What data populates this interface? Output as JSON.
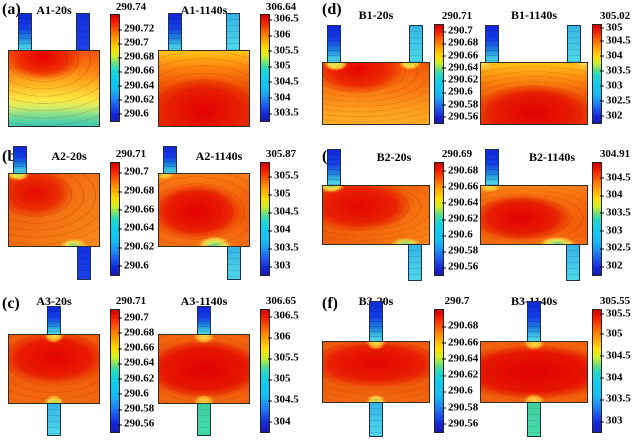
{
  "figure": {
    "panels": [
      {
        "label": "(a)",
        "plots": [
          {
            "title": "A1-20s",
            "colorbar_max": "290.74",
            "ticks": [
              "290.72",
              "290.7",
              "290.68",
              "290.66",
              "290.64",
              "290.62",
              "290.6"
            ]
          },
          {
            "title": "A1-1140s",
            "colorbar_max": "306.64",
            "ticks": [
              "306.5",
              "306",
              "305.5",
              "305",
              "304.5",
              "304",
              "303.5"
            ]
          }
        ]
      },
      {
        "label": "(d)",
        "plots": [
          {
            "title": "B1-20s",
            "colorbar_max": "290.71",
            "ticks": [
              "290.7",
              "290.68",
              "290.66",
              "290.64",
              "290.62",
              "290.6",
              "290.58",
              "290.56"
            ]
          },
          {
            "title": "B1-1140s",
            "colorbar_max": "305.02",
            "ticks": [
              "305",
              "304.5",
              "304",
              "303.5",
              "303",
              "302.5",
              "302"
            ]
          }
        ]
      },
      {
        "label": "(b)",
        "plots": [
          {
            "title": "A2-20s",
            "colorbar_max": "290.71",
            "ticks": [
              "290.7",
              "290.68",
              "290.66",
              "290.64",
              "290.62",
              "290.6"
            ]
          },
          {
            "title": "A2-1140s",
            "colorbar_max": "305.87",
            "ticks": [
              "305.5",
              "305",
              "304.5",
              "304",
              "303.5",
              "303"
            ]
          }
        ]
      },
      {
        "label": "(e)",
        "plots": [
          {
            "title": "B2-20s",
            "colorbar_max": "290.69",
            "ticks": [
              "290.68",
              "290.66",
              "290.64",
              "290.62",
              "290.6",
              "290.58",
              "290.56"
            ]
          },
          {
            "title": "B2-1140s",
            "colorbar_max": "304.91",
            "ticks": [
              "304.5",
              "304",
              "303.5",
              "303",
              "302.5",
              "302"
            ]
          }
        ]
      },
      {
        "label": "(c)",
        "plots": [
          {
            "title": "A3-20s",
            "colorbar_max": "290.71",
            "ticks": [
              "290.7",
              "290.68",
              "290.66",
              "290.64",
              "290.62",
              "290.6",
              "290.58",
              "290.56"
            ]
          },
          {
            "title": "A3-1140s",
            "colorbar_max": "306.65",
            "ticks": [
              "306.5",
              "306",
              "305.5",
              "305",
              "304.5",
              "304"
            ]
          }
        ]
      },
      {
        "label": "(f)",
        "plots": [
          {
            "title": "B3-20s",
            "colorbar_max": "290.7",
            "ticks": [
              "290.68",
              "290.66",
              "290.64",
              "290.62",
              "290.6",
              "290.58",
              "290.56"
            ]
          },
          {
            "title": "B3-1140s",
            "colorbar_max": "305.55",
            "ticks": [
              "305.5",
              "305",
              "304.5",
              "304",
              "303.5",
              "303"
            ]
          }
        ]
      }
    ]
  },
  "chart_data": [
    {
      "type": "heatmap",
      "panel": "(a)",
      "title": "A1-20s",
      "colormap": "jet",
      "colorbar_max": 290.74,
      "colorbar_ticks": [
        290.72,
        290.7,
        290.68,
        290.66,
        290.64,
        290.62,
        290.6
      ],
      "tab_layout": "two tabs on top",
      "hot_region": "upper center of cell",
      "cold_region": "bottom edge and tabs"
    },
    {
      "type": "heatmap",
      "panel": "(a)",
      "title": "A1-1140s",
      "colormap": "jet",
      "colorbar_max": 306.64,
      "colorbar_ticks": [
        306.5,
        306,
        305.5,
        305,
        304.5,
        304,
        303.5
      ],
      "tab_layout": "two tabs on top",
      "hot_region": "lower two-thirds of cell",
      "cold_region": "tabs"
    },
    {
      "type": "heatmap",
      "panel": "(b)",
      "title": "A2-20s",
      "colormap": "jet",
      "colorbar_max": 290.71,
      "colorbar_ticks": [
        290.7,
        290.68,
        290.66,
        290.64,
        290.62,
        290.6
      ],
      "tab_layout": "tab top-left, tab bottom-right",
      "hot_region": "upper-left of cell",
      "cold_region": "tabs"
    },
    {
      "type": "heatmap",
      "panel": "(b)",
      "title": "A2-1140s",
      "colormap": "jet",
      "colorbar_max": 305.87,
      "colorbar_ticks": [
        305.5,
        305,
        304.5,
        304,
        303.5,
        303
      ],
      "tab_layout": "tab top-left, tab bottom-right",
      "hot_region": "diagonal band through center",
      "cold_region": "tabs"
    },
    {
      "type": "heatmap",
      "panel": "(c)",
      "title": "A3-20s",
      "colormap": "jet",
      "colorbar_max": 290.71,
      "colorbar_ticks": [
        290.7,
        290.68,
        290.66,
        290.64,
        290.62,
        290.6,
        290.58,
        290.56
      ],
      "tab_layout": "tab top-center, tab bottom-center",
      "hot_region": "upper-center band",
      "cold_region": "tabs"
    },
    {
      "type": "heatmap",
      "panel": "(c)",
      "title": "A3-1140s",
      "colormap": "jet",
      "colorbar_max": 306.65,
      "colorbar_ticks": [
        306.5,
        306,
        305.5,
        305,
        304.5,
        304
      ],
      "tab_layout": "tab top-center, tab bottom-center",
      "hot_region": "central horizontal band",
      "cold_region": "tabs"
    },
    {
      "type": "heatmap",
      "panel": "(d)",
      "title": "B1-20s",
      "colormap": "jet",
      "colorbar_max": 290.71,
      "colorbar_ticks": [
        290.7,
        290.68,
        290.66,
        290.64,
        290.62,
        290.6,
        290.58,
        290.56
      ],
      "tab_layout": "two tabs on top",
      "hot_region": "upper-left center of cell",
      "cold_region": "bottom edge and tabs"
    },
    {
      "type": "heatmap",
      "panel": "(d)",
      "title": "B1-1140s",
      "colormap": "jet",
      "colorbar_max": 305.02,
      "colorbar_ticks": [
        305,
        304.5,
        304,
        303.5,
        303,
        302.5,
        302
      ],
      "tab_layout": "two tabs on top",
      "hot_region": "lower center of cell",
      "cold_region": "tabs"
    },
    {
      "type": "heatmap",
      "panel": "(e)",
      "title": "B2-20s",
      "colormap": "jet",
      "colorbar_max": 290.69,
      "colorbar_ticks": [
        290.68,
        290.66,
        290.64,
        290.62,
        290.6,
        290.58,
        290.56
      ],
      "tab_layout": "tab top-left, tab bottom-right",
      "hot_region": "upper-left of cell",
      "cold_region": "tabs"
    },
    {
      "type": "heatmap",
      "panel": "(e)",
      "title": "B2-1140s",
      "colormap": "jet",
      "colorbar_max": 304.91,
      "colorbar_ticks": [
        304.5,
        304,
        303.5,
        303,
        302.5,
        302
      ],
      "tab_layout": "tab top-left, tab bottom-right",
      "hot_region": "diagonal band center-left",
      "cold_region": "tabs"
    },
    {
      "type": "heatmap",
      "panel": "(f)",
      "title": "B3-20s",
      "colormap": "jet",
      "colorbar_max": 290.7,
      "colorbar_ticks": [
        290.68,
        290.66,
        290.64,
        290.62,
        290.6,
        290.58,
        290.56
      ],
      "tab_layout": "tab top-center, tab bottom-center",
      "hot_region": "upper-center band",
      "cold_region": "tabs"
    },
    {
      "type": "heatmap",
      "panel": "(f)",
      "title": "B3-1140s",
      "colormap": "jet",
      "colorbar_max": 305.55,
      "colorbar_ticks": [
        305.5,
        305,
        304.5,
        304,
        303.5,
        303
      ],
      "tab_layout": "tab top-center, tab bottom-center",
      "hot_region": "central horizontal band",
      "cold_region": "tabs"
    }
  ],
  "colors": {
    "colorbar_top": "#cf0000",
    "colorbar_bottom": "#1a1bb0",
    "tab_blue": "#1d3fe0",
    "tab_cyan": "#45cfe4",
    "tab_green": "#3fd6a0",
    "contour_line": "#8c1e00",
    "background": "#ffffff"
  }
}
